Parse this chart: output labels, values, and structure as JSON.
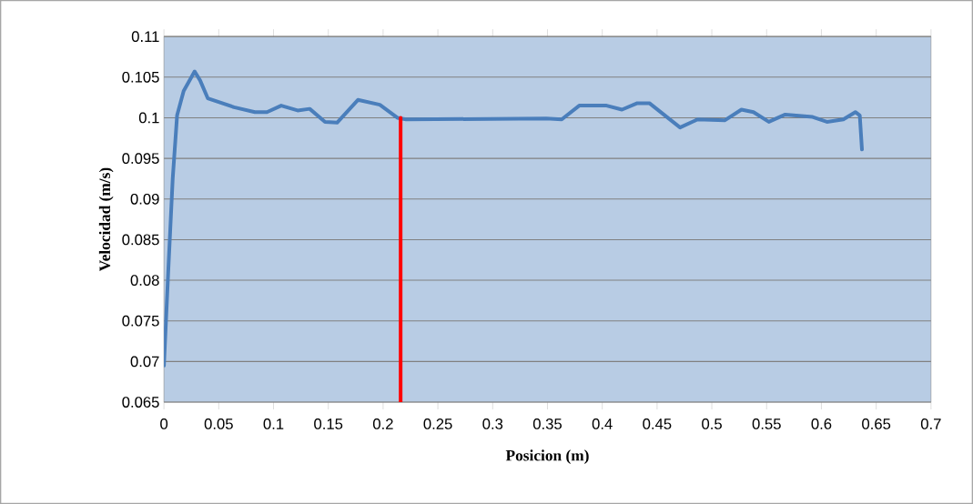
{
  "chart_data": {
    "type": "line",
    "xlabel": "Posicion (m)",
    "ylabel": "Velocidad (m/s)",
    "xlim": [
      0,
      0.7
    ],
    "xticks": [
      0,
      0.05,
      0.1,
      0.15,
      0.2,
      0.25,
      0.3,
      0.35,
      0.4,
      0.45,
      0.5,
      0.55,
      0.6,
      0.65,
      0.7
    ],
    "ylim": [
      0.065,
      0.11
    ],
    "yticks": [
      0.065,
      0.07,
      0.075,
      0.08,
      0.085,
      0.09,
      0.095,
      0.1,
      0.105,
      0.11
    ],
    "grid": "y",
    "marker": "none",
    "line_style": "solid",
    "series": [
      {
        "color": "#4a7ebb",
        "x": [
          0,
          0.004,
          0.008,
          0.012,
          0.018,
          0.028,
          0.033,
          0.04,
          0.064,
          0.083,
          0.094,
          0.107,
          0.122,
          0.133,
          0.147,
          0.158,
          0.177,
          0.197,
          0.213,
          0.221,
          0.349,
          0.363,
          0.379,
          0.404,
          0.418,
          0.432,
          0.443,
          0.471,
          0.487,
          0.512,
          0.527,
          0.538,
          0.552,
          0.567,
          0.592,
          0.605,
          0.62,
          0.631,
          0.635,
          0.637
        ],
        "values": [
          0.0695,
          0.0813,
          0.0925,
          0.1003,
          0.1033,
          0.1057,
          0.1046,
          0.1024,
          0.1013,
          0.1007,
          0.1007,
          0.1015,
          0.1009,
          0.1011,
          0.0995,
          0.0994,
          0.1022,
          0.1016,
          0.1,
          0.0998,
          0.0999,
          0.0998,
          0.1015,
          0.1015,
          0.101,
          0.1018,
          0.1018,
          0.0988,
          0.0998,
          0.0997,
          0.101,
          0.1007,
          0.0995,
          0.1004,
          0.1001,
          0.0995,
          0.0998,
          0.1007,
          0.1003,
          0.0961
        ]
      },
      {
        "color": "#ff0000",
        "x": [
          0.216,
          0.216
        ],
        "values": [
          0.065,
          0.1
        ]
      }
    ]
  }
}
